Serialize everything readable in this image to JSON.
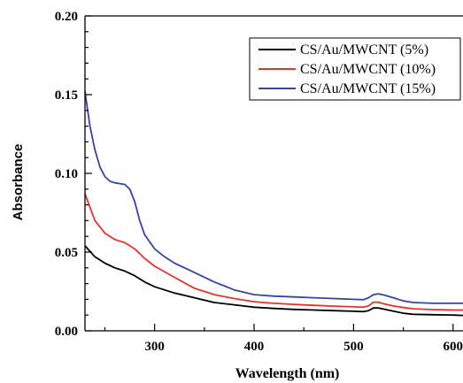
{
  "chart_data": {
    "type": "line",
    "xlabel": "Wavelength (nm)",
    "ylabel": "Absorbance",
    "xlim": [
      230,
      610
    ],
    "ylim": [
      0.0,
      0.2
    ],
    "xticks": [
      300,
      400,
      500,
      600
    ],
    "xtick_labels": [
      "300",
      "400",
      "500",
      "600"
    ],
    "yticks": [
      0.0,
      0.05,
      0.1,
      0.15,
      0.2
    ],
    "ytick_labels": [
      "0.00",
      "0.05",
      "0.10",
      "0.15",
      "0.20"
    ],
    "grid": false,
    "legend_position": "top-right",
    "series": [
      {
        "name": "CS/Au/MWCNT (5%)",
        "color": "#000000",
        "x": [
          230,
          240,
          250,
          260,
          270,
          280,
          290,
          300,
          320,
          340,
          360,
          380,
          400,
          420,
          440,
          460,
          480,
          500,
          510,
          515,
          520,
          525,
          530,
          540,
          550,
          560,
          580,
          600,
          610
        ],
        "y": [
          0.054,
          0.047,
          0.043,
          0.04,
          0.038,
          0.035,
          0.031,
          0.028,
          0.024,
          0.021,
          0.018,
          0.0165,
          0.015,
          0.0142,
          0.0136,
          0.0132,
          0.0128,
          0.0124,
          0.0122,
          0.0128,
          0.0145,
          0.0145,
          0.0138,
          0.0125,
          0.0112,
          0.0105,
          0.0102,
          0.01,
          0.0098
        ]
      },
      {
        "name": "CS/Au/MWCNT (10%)",
        "color": "#e8312a",
        "x": [
          230,
          240,
          250,
          260,
          270,
          280,
          290,
          300,
          320,
          340,
          360,
          380,
          400,
          420,
          440,
          460,
          480,
          500,
          510,
          515,
          520,
          525,
          530,
          540,
          550,
          560,
          580,
          600,
          610
        ],
        "y": [
          0.087,
          0.07,
          0.062,
          0.058,
          0.056,
          0.052,
          0.046,
          0.041,
          0.034,
          0.027,
          0.023,
          0.0205,
          0.0185,
          0.0175,
          0.0168,
          0.0162,
          0.0157,
          0.0152,
          0.015,
          0.0158,
          0.0182,
          0.0182,
          0.0172,
          0.0158,
          0.0148,
          0.014,
          0.0135,
          0.0132,
          0.0132
        ]
      },
      {
        "name": "CS/Au/MWCNT (15%)",
        "color": "#3545a6",
        "x": [
          230,
          235,
          240,
          245,
          250,
          255,
          260,
          270,
          275,
          280,
          285,
          290,
          300,
          310,
          320,
          340,
          360,
          380,
          400,
          420,
          440,
          460,
          480,
          500,
          510,
          515,
          520,
          525,
          530,
          540,
          550,
          560,
          580,
          600,
          610
        ],
        "y": [
          0.152,
          0.13,
          0.115,
          0.104,
          0.098,
          0.095,
          0.094,
          0.093,
          0.09,
          0.082,
          0.07,
          0.061,
          0.052,
          0.047,
          0.043,
          0.037,
          0.031,
          0.026,
          0.023,
          0.022,
          0.0215,
          0.021,
          0.0205,
          0.02,
          0.0198,
          0.021,
          0.023,
          0.0235,
          0.0228,
          0.021,
          0.019,
          0.018,
          0.0175,
          0.0175,
          0.0175
        ]
      }
    ]
  }
}
